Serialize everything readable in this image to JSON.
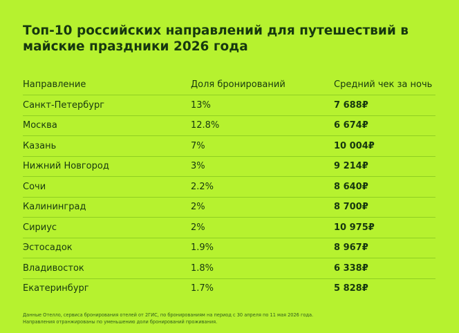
{
  "header": {
    "title": "Топ-10 российских направлений для путешествий в майские праздники 2026 года"
  },
  "table": {
    "columns": [
      "Направление",
      "Доля бронирований",
      "Средний чек за ночь"
    ],
    "rows": [
      [
        "Санкт-Петербург",
        "13%",
        "7 688₽"
      ],
      [
        "Москва",
        "12.8%",
        "6 674₽"
      ],
      [
        "Казань",
        "7%",
        "10 004₽"
      ],
      [
        "Нижний Новгород",
        "3%",
        "9 214₽"
      ],
      [
        "Сочи",
        "2.2%",
        "8 640₽"
      ],
      [
        "Калининград",
        "2%",
        "8 700₽"
      ],
      [
        "Сириус",
        "2%",
        "10 975₽"
      ],
      [
        "Эстосадок",
        "1.9%",
        "8 967₽"
      ],
      [
        "Владивосток",
        "1.8%",
        "6 338₽"
      ],
      [
        "Екатеринбург",
        "1.7%",
        "5 828₽"
      ]
    ]
  },
  "footnote": [
    "Данные Отелло, сервиса бронирования отелей от 2ГИС, по бронированиям на период с 30 апреля по 11 мая 2026 года.",
    "Направления отранжированы по уменьшению доли бронирований проживания."
  ]
}
